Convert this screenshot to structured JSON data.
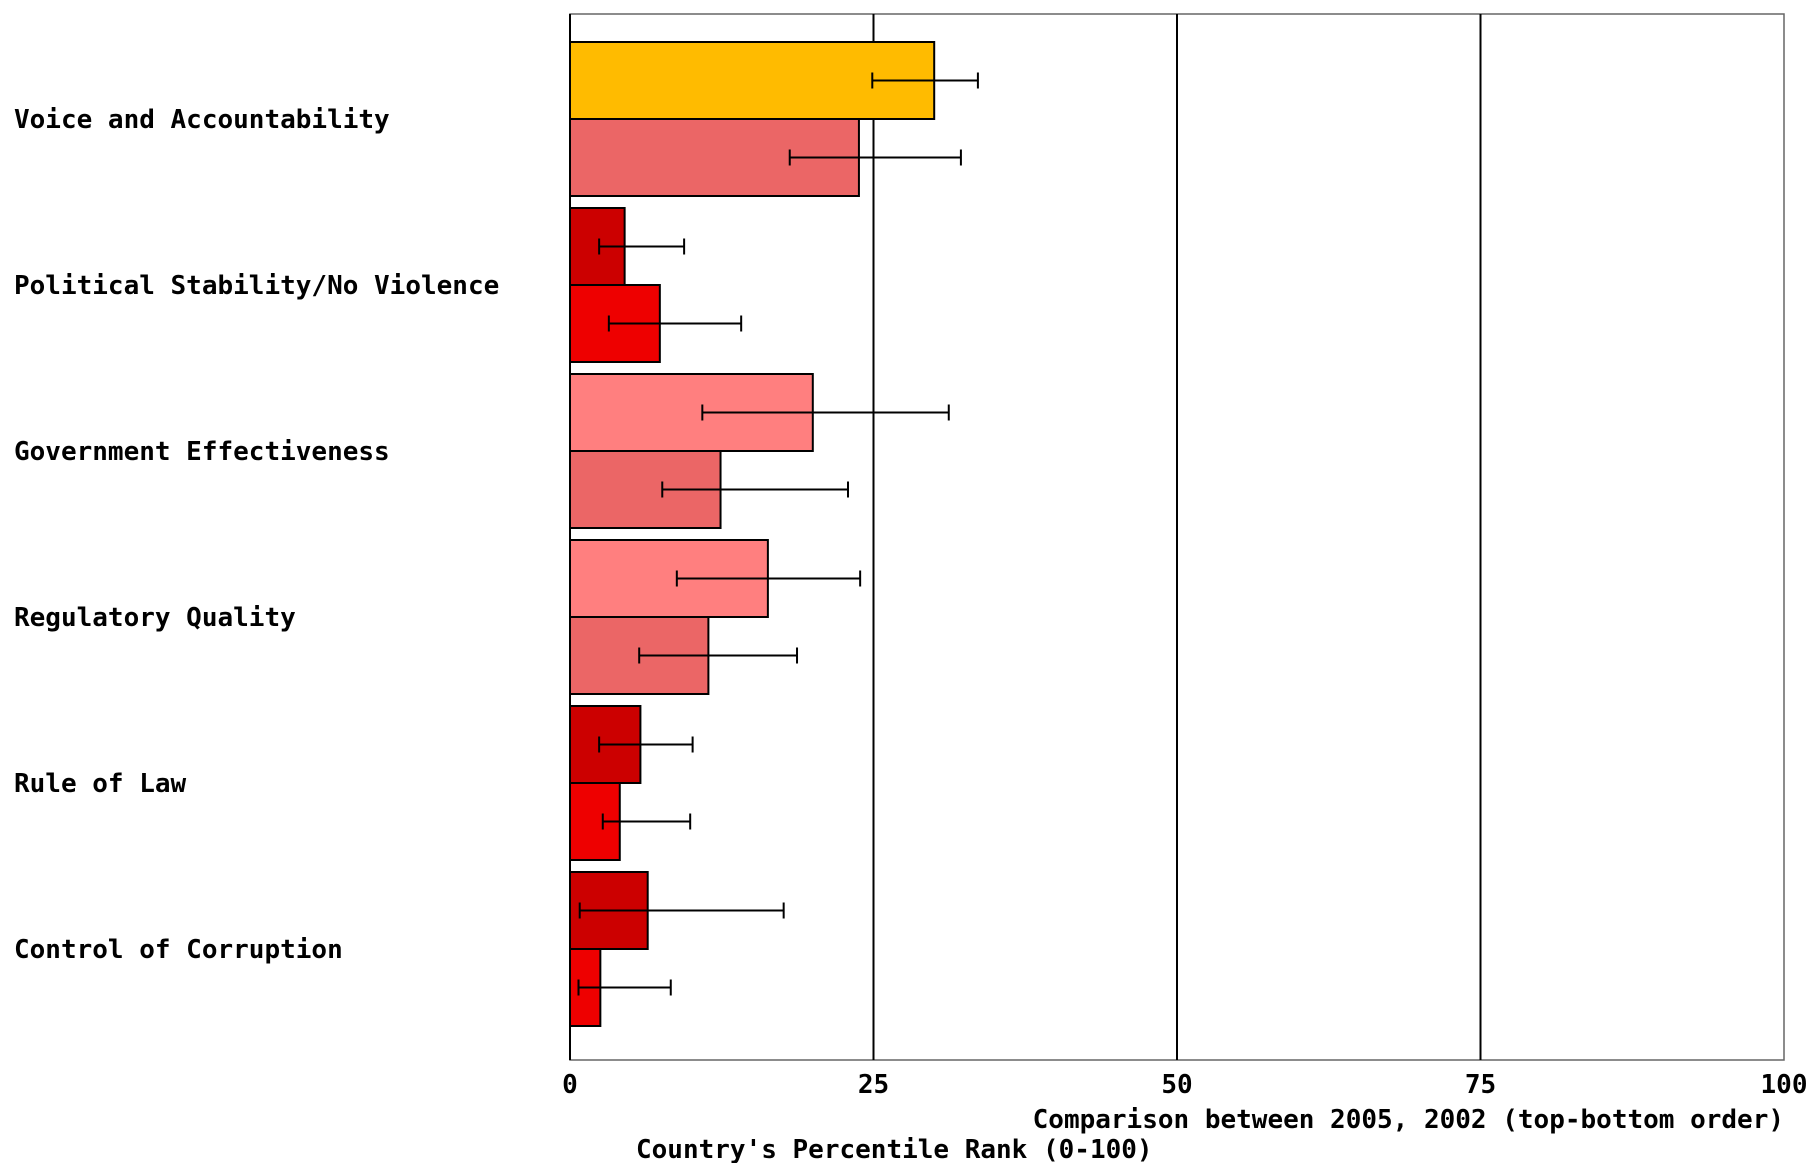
{
  "chart_data": {
    "type": "bar",
    "orientation": "horizontal",
    "categories": [
      "Voice and Accountability",
      "Political Stability/No Violence",
      "Government Effectiveness",
      "Regulatory Quality",
      "Rule of Law",
      "Control of Corruption"
    ],
    "series": [
      {
        "name": "2005",
        "values": [
          30,
          4.5,
          20,
          16.3,
          5.8,
          6.4
        ],
        "error_low": [
          24.9,
          2.4,
          10.9,
          8.8,
          2.4,
          0.8
        ],
        "error_high": [
          33.6,
          9.4,
          31.2,
          23.9,
          10.1,
          17.6
        ],
        "colors": [
          "#FFBB00",
          "#CC0000",
          "#FF7F7F",
          "#FF7F7F",
          "#CC0000",
          "#CC0000"
        ]
      },
      {
        "name": "2002",
        "values": [
          23.8,
          7.4,
          12.4,
          11.4,
          4.1,
          2.5
        ],
        "error_low": [
          18.1,
          3.2,
          7.6,
          5.7,
          2.7,
          0.7
        ],
        "error_high": [
          32.2,
          14.1,
          22.9,
          18.7,
          9.9,
          8.3
        ],
        "colors": [
          "#EB6666",
          "#EE0000",
          "#EB6666",
          "#EB6666",
          "#EE0000",
          "#EE0000"
        ]
      }
    ],
    "xlim": [
      0,
      100
    ],
    "xticks": [
      0,
      25,
      50,
      75,
      100
    ],
    "xticklabels": [
      "0",
      "25",
      "50",
      "75",
      "100"
    ],
    "grid": true,
    "comparison_text": "Comparison between 2005, 2002 (top-bottom order)",
    "xlabel": "Country's Percentile Rank (0-100)"
  }
}
